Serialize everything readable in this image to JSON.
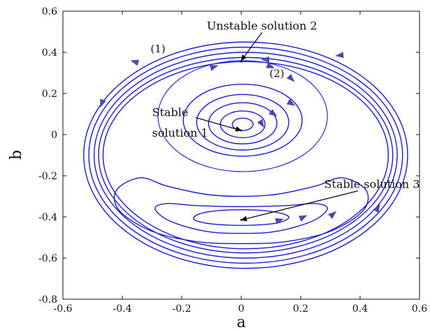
{
  "chart_data": {
    "type": "line",
    "title": "",
    "xlabel": "a",
    "ylabel": "b",
    "xlim": [
      -0.6,
      0.6
    ],
    "ylim": [
      -0.8,
      0.6
    ],
    "xticks": [
      -0.6,
      -0.4,
      -0.2,
      0,
      0.2,
      0.4,
      0.6
    ],
    "yticks": [
      0.6,
      0.4,
      0.2,
      0,
      -0.2,
      -0.4,
      -0.6,
      -0.8
    ],
    "xtick_labels": [
      "-0.6",
      "-0.4",
      "-0.2",
      "0",
      "0.2",
      "0.4",
      "0.6"
    ],
    "ytick_labels": [
      "0.6",
      "0.4",
      "0.2",
      "0",
      "-0.2",
      "-0.4",
      "-0.6",
      "-0.8"
    ],
    "grid": false,
    "line_color": "#1a1ad8",
    "arrow_color": "#4a4aa8",
    "equilibria": [
      {
        "name": "stable-solution-1",
        "x": 0.0,
        "y": 0.02
      },
      {
        "name": "unstable-solution-2",
        "x": 0.0,
        "y": 0.355
      },
      {
        "name": "stable-solution-3",
        "x": 0.0,
        "y": -0.415
      }
    ],
    "trajectories": {
      "outer_orbits": [
        {
          "cx": 0.015,
          "cy": -0.1,
          "rx": 0.545,
          "ry": 0.55
        },
        {
          "cx": 0.015,
          "cy": -0.1,
          "rx": 0.528,
          "ry": 0.525
        },
        {
          "cx": 0.015,
          "cy": -0.1,
          "rx": 0.51,
          "ry": 0.5
        },
        {
          "cx": 0.015,
          "cy": -0.1,
          "rx": 0.495,
          "ry": 0.475
        },
        {
          "cx": 0.015,
          "cy": -0.1,
          "rx": 0.48,
          "ry": 0.455
        }
      ],
      "separatrix_loop": {
        "cx": 0.005,
        "cy": 0.09,
        "rx": 0.285,
        "ry": 0.27
      },
      "inner_orbits_around_solution_1": [
        {
          "cx": 0.005,
          "cy": 0.05,
          "rx": 0.035,
          "ry": 0.03
        },
        {
          "cx": 0.005,
          "cy": 0.05,
          "rx": 0.075,
          "ry": 0.065
        },
        {
          "cx": 0.005,
          "cy": 0.055,
          "rx": 0.115,
          "ry": 0.1
        },
        {
          "cx": 0.005,
          "cy": 0.06,
          "rx": 0.155,
          "ry": 0.135
        },
        {
          "cx": 0.005,
          "cy": 0.07,
          "rx": 0.2,
          "ry": 0.175
        }
      ],
      "orbits_around_solution_3": [
        {
          "x": [
            -0.14,
            -0.08,
            0,
            0.08,
            0.14,
            0.16,
            0.12,
            0.04,
            -0.04,
            -0.12,
            -0.16,
            -0.14
          ],
          "y": [
            -0.385,
            -0.37,
            -0.365,
            -0.37,
            -0.385,
            -0.405,
            -0.43,
            -0.44,
            -0.44,
            -0.43,
            -0.41,
            -0.385
          ]
        },
        {
          "x": [
            -0.25,
            -0.15,
            0,
            0.15,
            0.25,
            0.29,
            0.24,
            0.12,
            0,
            -0.12,
            -0.24,
            -0.29,
            -0.25
          ],
          "y": [
            -0.335,
            -0.345,
            -0.35,
            -0.345,
            -0.335,
            -0.36,
            -0.42,
            -0.47,
            -0.48,
            -0.47,
            -0.42,
            -0.36,
            -0.335
          ]
        },
        {
          "x": [
            -0.42,
            -0.34,
            -0.25,
            -0.12,
            0,
            0.12,
            0.25,
            0.34,
            0.42,
            0.41,
            0.3,
            0.15,
            0,
            -0.15,
            -0.3,
            -0.41,
            -0.42
          ],
          "y": [
            -0.27,
            -0.21,
            -0.25,
            -0.29,
            -0.3,
            -0.29,
            -0.25,
            -0.21,
            -0.27,
            -0.37,
            -0.47,
            -0.52,
            -0.53,
            -0.52,
            -0.47,
            -0.37,
            -0.27
          ]
        }
      ]
    },
    "direction_arrows": [
      {
        "x": -0.36,
        "y": 0.355,
        "dx": -1,
        "dy": 0.3
      },
      {
        "x": 0.08,
        "y": 0.365,
        "dx": -1,
        "dy": 0
      },
      {
        "x": 0.33,
        "y": 0.385,
        "dx": -1,
        "dy": -0.1
      },
      {
        "x": -0.47,
        "y": 0.15,
        "dx": -0.4,
        "dy": -1
      },
      {
        "x": -0.09,
        "y": 0.33,
        "dx": 1,
        "dy": 0.3
      },
      {
        "x": 0.1,
        "y": 0.33,
        "dx": 1,
        "dy": -0.4
      },
      {
        "x": 0.17,
        "y": 0.27,
        "dx": 0.7,
        "dy": -0.7
      },
      {
        "x": 0.17,
        "y": 0.15,
        "dx": 1,
        "dy": -0.6
      },
      {
        "x": 0.11,
        "y": 0.1,
        "dx": 1,
        "dy": -0.7
      },
      {
        "x": 0.07,
        "y": 0.05,
        "dx": 0.6,
        "dy": -1
      },
      {
        "x": 0.13,
        "y": -0.415,
        "dx": 1,
        "dy": 0.3
      },
      {
        "x": 0.21,
        "y": -0.4,
        "dx": 1,
        "dy": 0.5
      },
      {
        "x": 0.31,
        "y": -0.385,
        "dx": 0.8,
        "dy": 0.7
      },
      {
        "x": 0.46,
        "y": -0.355,
        "dx": 0.6,
        "dy": 1
      }
    ],
    "annotations": [
      {
        "text": "Unstable solution 2",
        "x": 0.07,
        "y": 0.51,
        "anchor": "middle",
        "arrow_to": [
          0.0,
          0.36
        ]
      },
      {
        "text": "(1)",
        "x": -0.28,
        "y": 0.4,
        "anchor": "middle"
      },
      {
        "text": "(2)",
        "x": 0.12,
        "y": 0.28,
        "anchor": "middle"
      },
      {
        "text": "Stable",
        "x": -0.3,
        "y": 0.09,
        "anchor": "start",
        "arrow_to": [
          0.0,
          0.02
        ]
      },
      {
        "text": "solution 1",
        "x": -0.3,
        "y": -0.01,
        "anchor": "start"
      },
      {
        "text": "Stable solution 3",
        "x": 0.44,
        "y": -0.26,
        "anchor": "middle",
        "arrow_to": [
          0.0,
          -0.415
        ]
      }
    ]
  }
}
